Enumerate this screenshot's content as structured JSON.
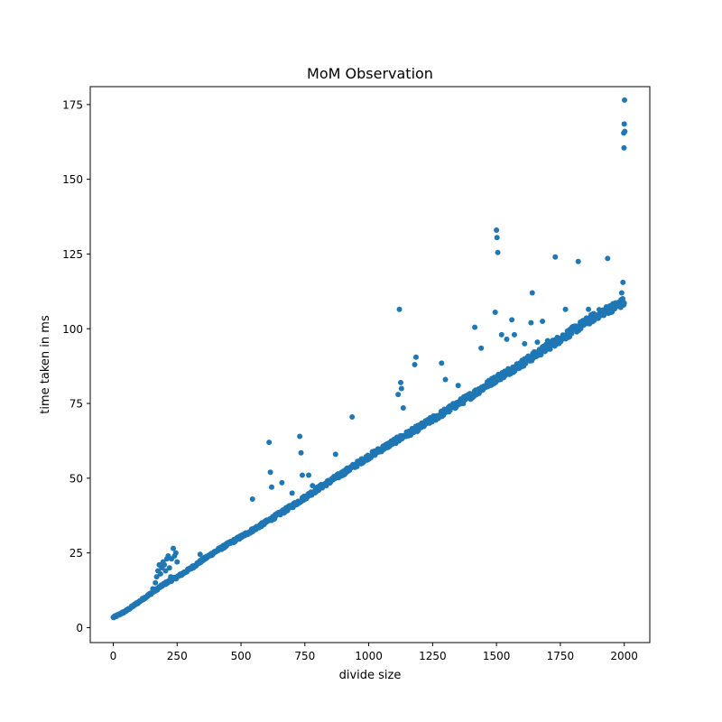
{
  "chart_data": {
    "type": "scatter",
    "title": "MoM Observation",
    "xlabel": "divide size",
    "ylabel": "time taken in ms",
    "xlim": [
      -90,
      2100
    ],
    "ylim": [
      -5,
      181
    ],
    "xticks": [
      0,
      250,
      500,
      750,
      1000,
      1250,
      1500,
      1750,
      2000
    ],
    "yticks": [
      0,
      25,
      50,
      75,
      100,
      125,
      150,
      175
    ],
    "grid": false,
    "marker_color": "#1f77b4",
    "trend": [
      [
        0,
        3.3
      ],
      [
        50,
        5.5
      ],
      [
        100,
        8.5
      ],
      [
        150,
        11.5
      ],
      [
        200,
        14.5
      ],
      [
        250,
        16.8
      ],
      [
        300,
        19.5
      ],
      [
        350,
        22.5
      ],
      [
        400,
        25.3
      ],
      [
        450,
        27.8
      ],
      [
        500,
        30.2
      ],
      [
        600,
        35.2
      ],
      [
        700,
        40.5
      ],
      [
        800,
        46.2
      ],
      [
        900,
        51.5
      ],
      [
        1000,
        57.0
      ],
      [
        1100,
        62.0
      ],
      [
        1200,
        66.8
      ],
      [
        1300,
        72.0
      ],
      [
        1400,
        77.3
      ],
      [
        1500,
        83.0
      ],
      [
        1600,
        88.0
      ],
      [
        1700,
        93.5
      ],
      [
        1800,
        99.0
      ],
      [
        1900,
        104.5
      ],
      [
        2000,
        108.5
      ]
    ],
    "outliers": [
      [
        155,
        13
      ],
      [
        165,
        15
      ],
      [
        170,
        17
      ],
      [
        175,
        19
      ],
      [
        180,
        21
      ],
      [
        185,
        18
      ],
      [
        190,
        20
      ],
      [
        195,
        22
      ],
      [
        200,
        21
      ],
      [
        205,
        19
      ],
      [
        210,
        23
      ],
      [
        215,
        24
      ],
      [
        220,
        20
      ],
      [
        225,
        17
      ],
      [
        228,
        23
      ],
      [
        235,
        26.5
      ],
      [
        240,
        24
      ],
      [
        245,
        25
      ],
      [
        250,
        22
      ],
      [
        340,
        24.5
      ],
      [
        545,
        43
      ],
      [
        610,
        62
      ],
      [
        615,
        52
      ],
      [
        620,
        47
      ],
      [
        660,
        48.5
      ],
      [
        700,
        45
      ],
      [
        730,
        64
      ],
      [
        735,
        58.5
      ],
      [
        740,
        51
      ],
      [
        765,
        51
      ],
      [
        780,
        47.5
      ],
      [
        870,
        58
      ],
      [
        935,
        70.5
      ],
      [
        1115,
        78
      ],
      [
        1120,
        106.5
      ],
      [
        1125,
        82
      ],
      [
        1128,
        80
      ],
      [
        1135,
        73.5
      ],
      [
        1180,
        88
      ],
      [
        1185,
        90.5
      ],
      [
        1285,
        88.5
      ],
      [
        1300,
        83
      ],
      [
        1350,
        81
      ],
      [
        1415,
        100.5
      ],
      [
        1440,
        93.5
      ],
      [
        1495,
        105.5
      ],
      [
        1500,
        133
      ],
      [
        1502,
        130.5
      ],
      [
        1505,
        125.5
      ],
      [
        1520,
        98
      ],
      [
        1540,
        96.5
      ],
      [
        1560,
        103
      ],
      [
        1570,
        98
      ],
      [
        1610,
        95
      ],
      [
        1635,
        102
      ],
      [
        1640,
        112
      ],
      [
        1660,
        95.5
      ],
      [
        1680,
        102.5
      ],
      [
        1700,
        96
      ],
      [
        1730,
        124
      ],
      [
        1770,
        106.5
      ],
      [
        1820,
        122.5
      ],
      [
        1860,
        106.5
      ],
      [
        1935,
        123.5
      ],
      [
        1990,
        112
      ],
      [
        1995,
        115.5
      ],
      [
        1997,
        108.5
      ],
      [
        1998,
        165.5
      ],
      [
        1999,
        160.5
      ],
      [
        2000,
        168.5
      ],
      [
        2001,
        176.5
      ],
      [
        2002,
        166
      ]
    ]
  }
}
